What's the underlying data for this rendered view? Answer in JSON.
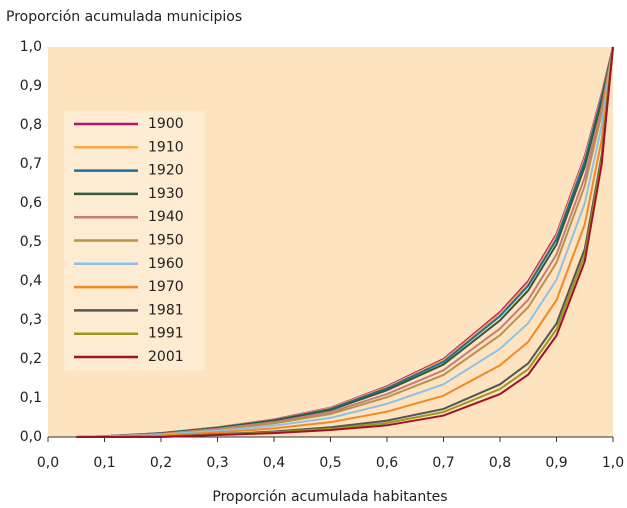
{
  "chart_data": {
    "type": "line",
    "title": "Proporción acumulada municipios",
    "x_label": "Proporción acumulada habitantes",
    "x": [
      0.05,
      0.1,
      0.2,
      0.3,
      0.4,
      0.5,
      0.6,
      0.7,
      0.8,
      0.85,
      0.9,
      0.95,
      0.98,
      1.0
    ],
    "series": [
      {
        "name": "1900",
        "color": "#b0156f",
        "values": [
          0,
          0.002,
          0.01,
          0.025,
          0.045,
          0.075,
          0.13,
          0.2,
          0.32,
          0.4,
          0.52,
          0.72,
          0.88,
          1
        ]
      },
      {
        "name": "1910",
        "color": "#f7a94b",
        "values": [
          0,
          0.002,
          0.01,
          0.025,
          0.044,
          0.074,
          0.128,
          0.197,
          0.316,
          0.395,
          0.515,
          0.715,
          0.876,
          1
        ]
      },
      {
        "name": "1920",
        "color": "#1f6e9e",
        "values": [
          0,
          0.002,
          0.01,
          0.024,
          0.043,
          0.072,
          0.125,
          0.193,
          0.31,
          0.388,
          0.507,
          0.707,
          0.871,
          1
        ]
      },
      {
        "name": "1930",
        "color": "#2e5a3e",
        "values": [
          0,
          0.002,
          0.009,
          0.023,
          0.042,
          0.069,
          0.12,
          0.186,
          0.299,
          0.376,
          0.494,
          0.693,
          0.862,
          1
        ]
      },
      {
        "name": "1940",
        "color": "#c87b7b",
        "values": [
          0,
          0.002,
          0.008,
          0.021,
          0.038,
          0.064,
          0.11,
          0.171,
          0.278,
          0.352,
          0.468,
          0.666,
          0.844,
          1
        ]
      },
      {
        "name": "1950",
        "color": "#b8924a",
        "values": [
          0,
          0.001,
          0.007,
          0.019,
          0.035,
          0.059,
          0.102,
          0.159,
          0.261,
          0.333,
          0.447,
          0.644,
          0.83,
          1
        ]
      },
      {
        "name": "1960",
        "color": "#8fc1e8",
        "values": [
          0,
          0.001,
          0.006,
          0.016,
          0.029,
          0.049,
          0.085,
          0.135,
          0.226,
          0.292,
          0.403,
          0.599,
          0.799,
          1
        ]
      },
      {
        "name": "1970",
        "color": "#f08a24",
        "values": [
          0,
          0.001,
          0.004,
          0.012,
          0.022,
          0.038,
          0.065,
          0.106,
          0.184,
          0.244,
          0.351,
          0.545,
          0.763,
          1
        ]
      },
      {
        "name": "1981",
        "color": "#555555",
        "values": [
          0,
          0,
          0.001,
          0.007,
          0.014,
          0.025,
          0.042,
          0.072,
          0.135,
          0.189,
          0.291,
          0.482,
          0.722,
          1
        ]
      },
      {
        "name": "1991",
        "color": "#9a9a1a",
        "values": [
          0,
          0,
          0.001,
          0.006,
          0.012,
          0.021,
          0.036,
          0.064,
          0.123,
          0.174,
          0.276,
          0.466,
          0.711,
          1
        ]
      },
      {
        "name": "2001",
        "color": "#a01228",
        "values": [
          0,
          0,
          0,
          0.005,
          0.01,
          0.018,
          0.03,
          0.055,
          0.11,
          0.16,
          0.26,
          0.45,
          0.7,
          1
        ]
      }
    ],
    "xlim": [
      0,
      1
    ],
    "ylim": [
      0,
      1
    ],
    "xticks": [
      {
        "value": 0,
        "label": "0,0"
      },
      {
        "value": 0.1,
        "label": "0,1"
      },
      {
        "value": 0.2,
        "label": "0,2"
      },
      {
        "value": 0.3,
        "label": "0,3"
      },
      {
        "value": 0.4,
        "label": "0,4"
      },
      {
        "value": 0.5,
        "label": "0,5"
      },
      {
        "value": 0.6,
        "label": "0,6"
      },
      {
        "value": 0.7,
        "label": "0,7"
      },
      {
        "value": 0.8,
        "label": "0,8"
      },
      {
        "value": 0.9,
        "label": "0,9"
      },
      {
        "value": 1,
        "label": "1,0"
      }
    ],
    "yticks": [
      {
        "value": 0,
        "label": "0,0"
      },
      {
        "value": 0.1,
        "label": "0,1"
      },
      {
        "value": 0.2,
        "label": "0,2"
      },
      {
        "value": 0.3,
        "label": "0,3"
      },
      {
        "value": 0.4,
        "label": "0,4"
      },
      {
        "value": 0.5,
        "label": "0,5"
      },
      {
        "value": 0.6,
        "label": "0,6"
      },
      {
        "value": 0.7,
        "label": "0,7"
      },
      {
        "value": 0.8,
        "label": "0,8"
      },
      {
        "value": 0.9,
        "label": "0,9"
      },
      {
        "value": 1,
        "label": "1,0"
      }
    ],
    "grid": false,
    "legend": "upper left"
  }
}
